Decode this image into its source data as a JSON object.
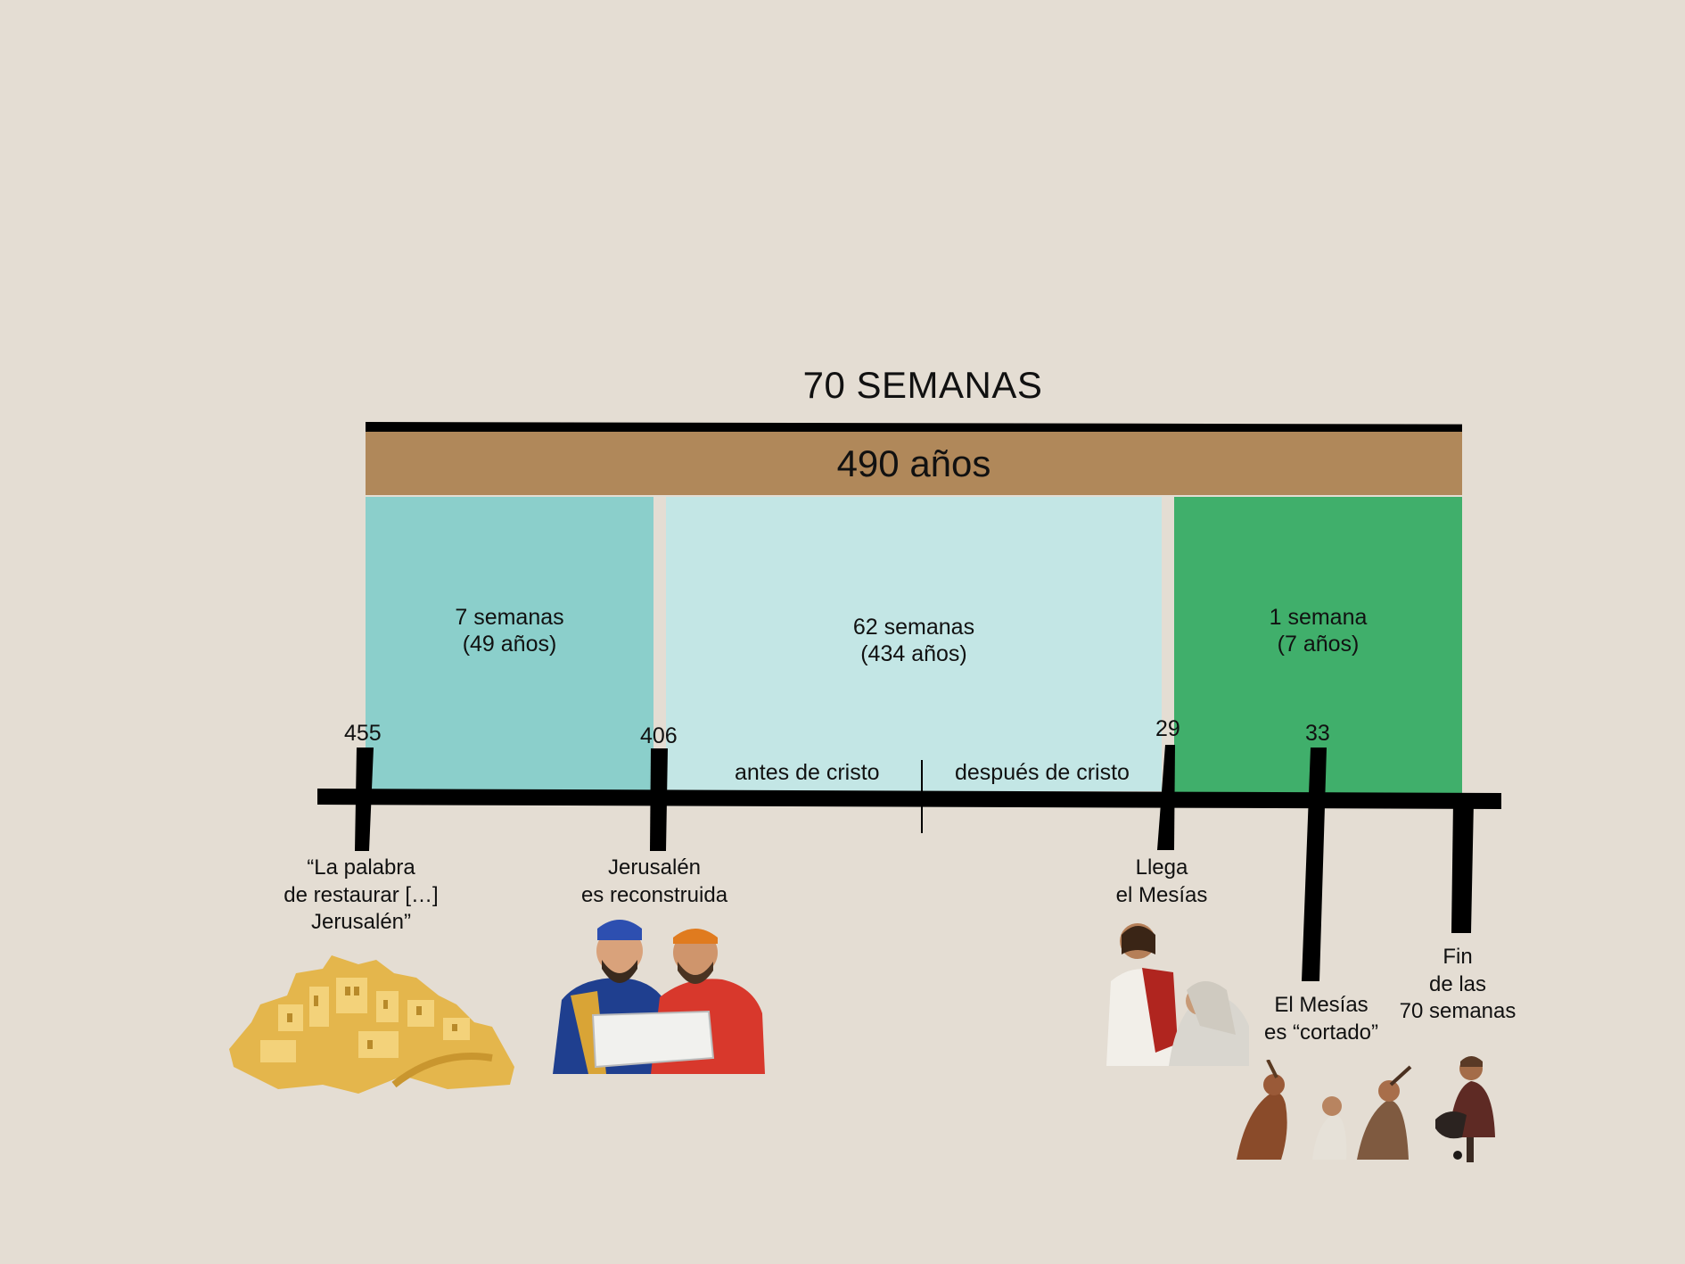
{
  "title": "70 SEMANAS",
  "total_label": "490 años",
  "periods": [
    {
      "label": "7 semanas\n(49 años)",
      "color": "#8bcfcb"
    },
    {
      "label": "62 semanas\n(434 años)",
      "color": "#c3e6e5"
    },
    {
      "label": "1 semana\n(7 años)",
      "color": "#40af6b"
    }
  ],
  "years": [
    "455",
    "406",
    "29",
    "33"
  ],
  "eras": {
    "before": "antes de cristo",
    "after": "después de cristo"
  },
  "events": [
    {
      "label": "“La palabra\nde restaurar […]\nJerusalén”",
      "icon": "golden-city-illustration"
    },
    {
      "label": "Jerusalén\nes reconstruida",
      "icon": "two-men-reading-scroll-illustration"
    },
    {
      "label": "Llega\nel Mesías",
      "icon": "messiah-healing-illustration"
    },
    {
      "label": "El Mesías\nes “cortado”",
      "icon": "scourging-illustration"
    },
    {
      "label": "Fin\nde las\n70 semanas",
      "icon": "roman-soldier-illustration"
    }
  ]
}
